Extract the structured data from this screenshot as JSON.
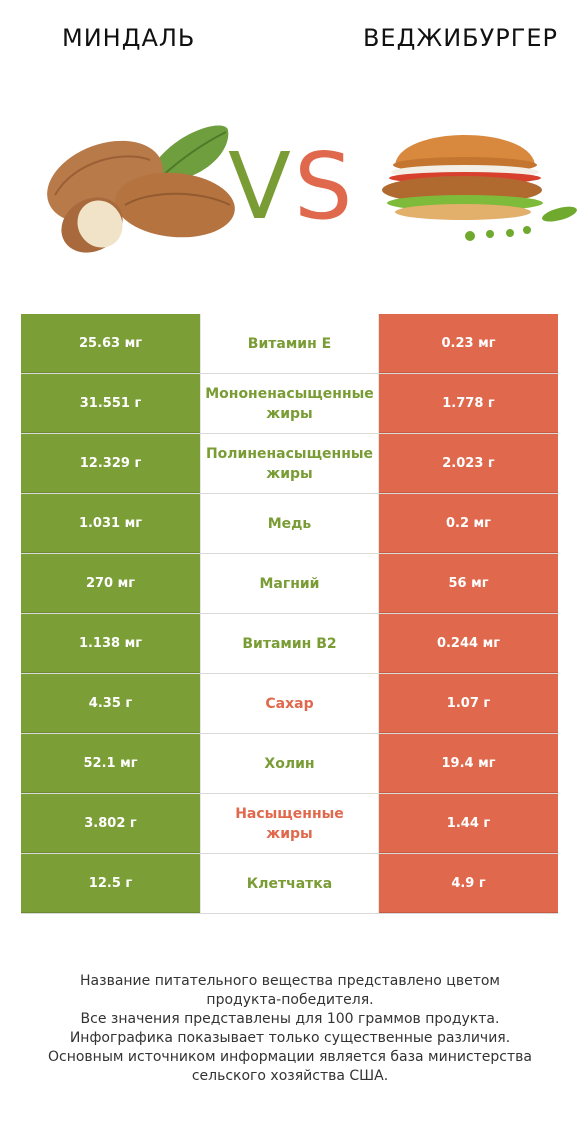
{
  "header": {
    "left_title": "МИНДАЛЬ",
    "right_title": "ВЕДЖИБУРГЕР",
    "vs_v": "V",
    "vs_s": "S"
  },
  "colors": {
    "winner_left": "#7c9e36",
    "winner_right": "#e0694d"
  },
  "rows": [
    {
      "left": "25.63 мг",
      "name": [
        "Витамин E"
      ],
      "winner": "left",
      "right": "0.23 мг"
    },
    {
      "left": "31.551 г",
      "name": [
        "Мононенасыщенные",
        "жиры"
      ],
      "winner": "left",
      "right": "1.778 г"
    },
    {
      "left": "12.329 г",
      "name": [
        "Полиненасыщенные",
        "жиры"
      ],
      "winner": "left",
      "right": "2.023 г"
    },
    {
      "left": "1.031 мг",
      "name": [
        "Медь"
      ],
      "winner": "left",
      "right": "0.2 мг"
    },
    {
      "left": "270 мг",
      "name": [
        "Магний"
      ],
      "winner": "left",
      "right": "56 мг"
    },
    {
      "left": "1.138 мг",
      "name": [
        "Витамин B2"
      ],
      "winner": "left",
      "right": "0.244 мг"
    },
    {
      "left": "4.35 г",
      "name": [
        "Сахар"
      ],
      "winner": "right",
      "right": "1.07 г"
    },
    {
      "left": "52.1 мг",
      "name": [
        "Холин"
      ],
      "winner": "left",
      "right": "19.4 мг"
    },
    {
      "left": "3.802 г",
      "name": [
        "Насыщенные",
        "жиры"
      ],
      "winner": "right",
      "right": "1.44 г"
    },
    {
      "left": "12.5 г",
      "name": [
        "Клетчатка"
      ],
      "winner": "left",
      "right": "4.9 г"
    }
  ],
  "footer": {
    "lines": [
      "Название питательного вещества представлено цветом",
      "продукта-победителя.",
      "Все значения представлены для 100 граммов продукта.",
      "Инфографика показывает только существенные различия.",
      "Основным источником информации является база министерства",
      "сельского хозяйства США."
    ]
  }
}
